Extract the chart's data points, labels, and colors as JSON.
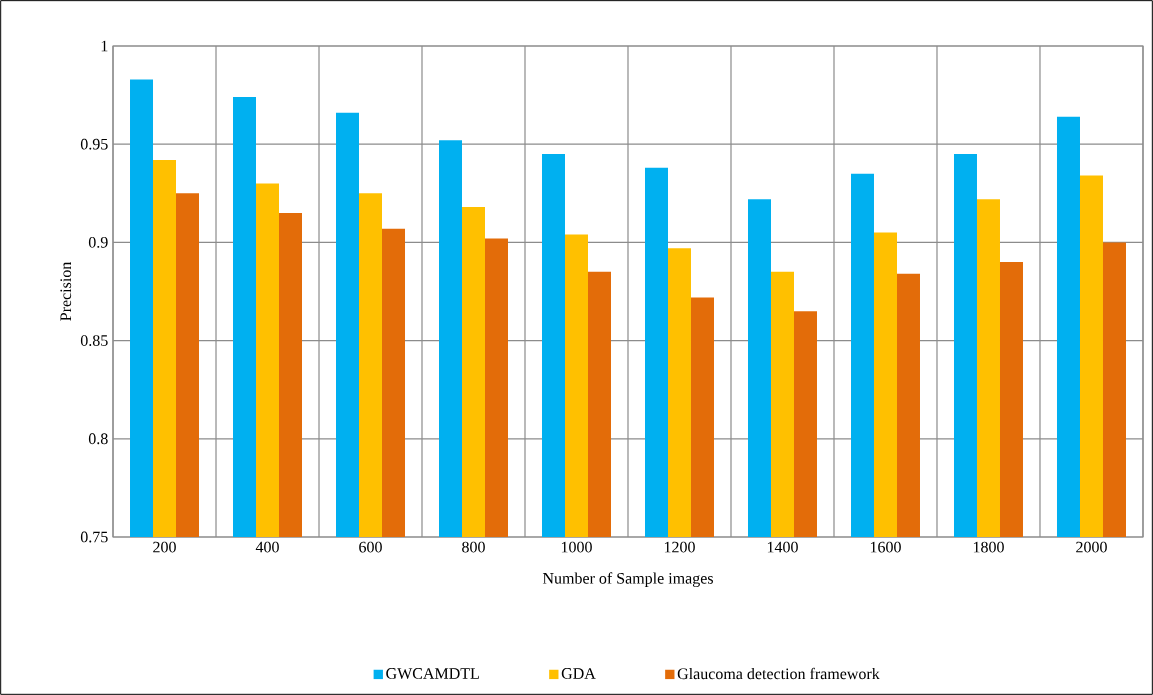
{
  "chart_data": {
    "type": "bar",
    "xlabel": "Number of Sample images",
    "ylabel": "Precision",
    "categories": [
      "200",
      "400",
      "600",
      "800",
      "1000",
      "1200",
      "1400",
      "1600",
      "1800",
      "2000"
    ],
    "series": [
      {
        "name": "GWCAMDTL",
        "color": "#00b0f0",
        "values": [
          0.983,
          0.974,
          0.966,
          0.952,
          0.945,
          0.938,
          0.922,
          0.935,
          0.945,
          0.964
        ]
      },
      {
        "name": "GDA",
        "color": "#ffc000",
        "values": [
          0.942,
          0.93,
          0.925,
          0.918,
          0.904,
          0.897,
          0.885,
          0.905,
          0.922,
          0.934
        ]
      },
      {
        "name": "Glaucoma detection framework",
        "color": "#e36c09",
        "values": [
          0.925,
          0.915,
          0.907,
          0.902,
          0.885,
          0.872,
          0.865,
          0.884,
          0.89,
          0.9
        ]
      }
    ],
    "ylim": [
      0.75,
      1
    ],
    "yticks": [
      0.75,
      0.8,
      0.85,
      0.9,
      0.95,
      1
    ],
    "grid": true,
    "legend": "bottom"
  }
}
